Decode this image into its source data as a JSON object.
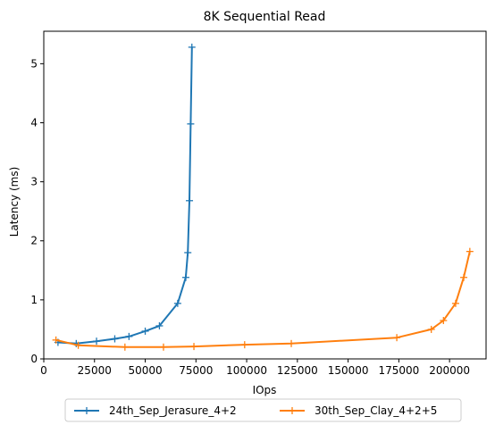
{
  "chart_data": {
    "type": "line",
    "title": "8K  Sequential Read",
    "xlabel": "IOps",
    "ylabel": "Latency (ms)",
    "xlim": [
      0,
      218000
    ],
    "ylim": [
      0,
      5.55
    ],
    "x_ticks": [
      0,
      25000,
      50000,
      75000,
      100000,
      125000,
      150000,
      175000,
      200000
    ],
    "x_tick_labels": [
      "0",
      "25000",
      "50000",
      "75000",
      "100000",
      "125000",
      "150000",
      "175000",
      "200000"
    ],
    "y_ticks": [
      0,
      1,
      2,
      3,
      4,
      5
    ],
    "y_tick_labels": [
      "0",
      "1",
      "2",
      "3",
      "4",
      "5"
    ],
    "grid": false,
    "legend_position": "bottom-center, outside plot, 2 columns",
    "marker": "+",
    "series": [
      {
        "name": "24th_Sep_Jerasure_4+2",
        "color": "#1f77b4",
        "x": [
          7000,
          16000,
          26000,
          35000,
          42000,
          50000,
          57000,
          66000,
          70000,
          71000,
          71800,
          72400,
          73000
        ],
        "y": [
          0.28,
          0.26,
          0.3,
          0.34,
          0.38,
          0.47,
          0.56,
          0.94,
          1.38,
          1.8,
          2.68,
          3.98,
          5.28
        ]
      },
      {
        "name": "30th_Sep_Clay_4+2+5",
        "color": "#ff7f0e",
        "x": [
          6000,
          17000,
          40000,
          59000,
          74000,
          99000,
          122000,
          174000,
          191000,
          197000,
          203000,
          207000,
          210000
        ],
        "y": [
          0.32,
          0.23,
          0.2,
          0.2,
          0.21,
          0.24,
          0.26,
          0.36,
          0.5,
          0.65,
          0.94,
          1.38,
          1.82
        ]
      }
    ]
  }
}
